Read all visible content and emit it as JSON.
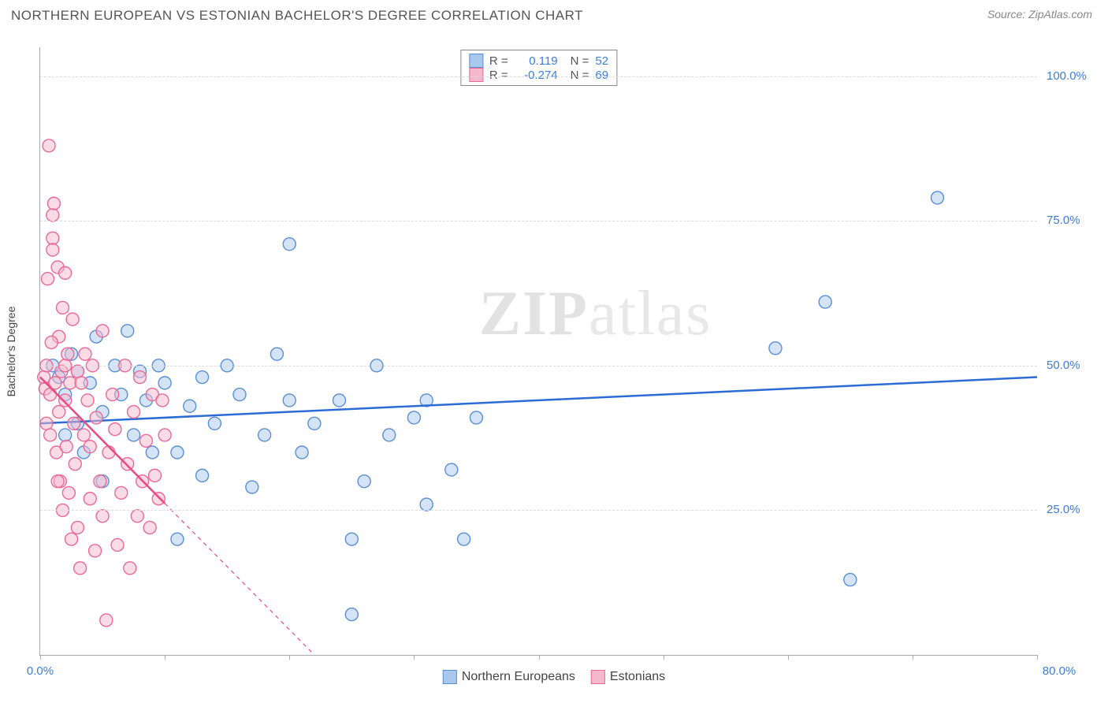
{
  "title": "NORTHERN EUROPEAN VS ESTONIAN BACHELOR'S DEGREE CORRELATION CHART",
  "source_prefix": "Source: ",
  "source_site": "ZipAtlas.com",
  "ylabel": "Bachelor's Degree",
  "watermark_a": "ZIP",
  "watermark_b": "atlas",
  "chart": {
    "type": "scatter",
    "xlim": [
      0,
      80
    ],
    "ylim": [
      0,
      105
    ],
    "xticks": [
      0,
      10,
      20,
      30,
      40,
      50,
      60,
      70,
      80
    ],
    "xtick_labels_shown": {
      "0": "0.0%",
      "80": "80.0%"
    },
    "yticks": [
      25,
      50,
      75,
      100
    ],
    "ytick_labels": {
      "25": "25.0%",
      "50": "50.0%",
      "75": "75.0%",
      "100": "100.0%"
    },
    "background_color": "#ffffff",
    "grid_color": "#dcdcdc",
    "marker_radius": 8,
    "marker_opacity": 0.5,
    "series": [
      {
        "name": "Northern Europeans",
        "fill": "#a9c8ee",
        "stroke": "#5a8fd6",
        "R": "0.119",
        "N": "52",
        "trend": {
          "x1": 0,
          "y1": 40,
          "x2": 80,
          "y2": 48,
          "color": "#2b6cd4",
          "width": 2.5,
          "dash_after_x": null
        },
        "points": [
          [
            1.0,
            50
          ],
          [
            1.5,
            48
          ],
          [
            2,
            45
          ],
          [
            2,
            38
          ],
          [
            2.5,
            52
          ],
          [
            3,
            49
          ],
          [
            3,
            40
          ],
          [
            3.5,
            35
          ],
          [
            4,
            47
          ],
          [
            4.5,
            55
          ],
          [
            5,
            42
          ],
          [
            5,
            30
          ],
          [
            6,
            50
          ],
          [
            6.5,
            45
          ],
          [
            7,
            56
          ],
          [
            7.5,
            38
          ],
          [
            8,
            49
          ],
          [
            8.5,
            44
          ],
          [
            9,
            35
          ],
          [
            9.5,
            50
          ],
          [
            10,
            47
          ],
          [
            11,
            20
          ],
          [
            11,
            35
          ],
          [
            12,
            43
          ],
          [
            13,
            48
          ],
          [
            13,
            31
          ],
          [
            14,
            40
          ],
          [
            15,
            50
          ],
          [
            16,
            45
          ],
          [
            17,
            29
          ],
          [
            18,
            38
          ],
          [
            19,
            52
          ],
          [
            20,
            71
          ],
          [
            20,
            44
          ],
          [
            21,
            35
          ],
          [
            22,
            40
          ],
          [
            24,
            44
          ],
          [
            25,
            7
          ],
          [
            25,
            20
          ],
          [
            26,
            30
          ],
          [
            27,
            50
          ],
          [
            28,
            38
          ],
          [
            30,
            41
          ],
          [
            31,
            44
          ],
          [
            31,
            26
          ],
          [
            33,
            32
          ],
          [
            34,
            20
          ],
          [
            35,
            41
          ],
          [
            59,
            53
          ],
          [
            63,
            61
          ],
          [
            65,
            13
          ],
          [
            72,
            79
          ]
        ]
      },
      {
        "name": "Estonians",
        "fill": "#f6b8cd",
        "stroke": "#e96a94",
        "R": "-0.274",
        "N": "69",
        "trend": {
          "x1": 0,
          "y1": 48,
          "x2": 22,
          "y2": 0,
          "color": "#e94b80",
          "width": 2.5,
          "dash_after_x": 10
        },
        "points": [
          [
            0.3,
            48
          ],
          [
            0.4,
            46
          ],
          [
            0.5,
            50
          ],
          [
            0.5,
            40
          ],
          [
            0.7,
            88
          ],
          [
            0.8,
            45
          ],
          [
            0.8,
            38
          ],
          [
            1.0,
            72
          ],
          [
            1.0,
            70
          ],
          [
            1.1,
            78
          ],
          [
            1.2,
            47
          ],
          [
            1.3,
            35
          ],
          [
            1.4,
            67
          ],
          [
            1.5,
            55
          ],
          [
            1.5,
            42
          ],
          [
            1.6,
            30
          ],
          [
            1.7,
            49
          ],
          [
            1.8,
            60
          ],
          [
            1.8,
            25
          ],
          [
            2.0,
            50
          ],
          [
            2.0,
            44
          ],
          [
            2.1,
            36
          ],
          [
            2.2,
            52
          ],
          [
            2.3,
            28
          ],
          [
            2.4,
            47
          ],
          [
            2.5,
            20
          ],
          [
            2.6,
            58
          ],
          [
            2.7,
            40
          ],
          [
            2.8,
            33
          ],
          [
            3.0,
            49
          ],
          [
            3.0,
            22
          ],
          [
            3.2,
            15
          ],
          [
            3.3,
            47
          ],
          [
            3.5,
            38
          ],
          [
            3.6,
            52
          ],
          [
            3.8,
            44
          ],
          [
            4.0,
            27
          ],
          [
            4.0,
            36
          ],
          [
            4.2,
            50
          ],
          [
            4.4,
            18
          ],
          [
            4.5,
            41
          ],
          [
            4.8,
            30
          ],
          [
            5.0,
            56
          ],
          [
            5.0,
            24
          ],
          [
            5.3,
            6
          ],
          [
            5.5,
            35
          ],
          [
            5.8,
            45
          ],
          [
            6.0,
            39
          ],
          [
            6.2,
            19
          ],
          [
            6.5,
            28
          ],
          [
            6.8,
            50
          ],
          [
            7.0,
            33
          ],
          [
            7.2,
            15
          ],
          [
            7.5,
            42
          ],
          [
            7.8,
            24
          ],
          [
            8.0,
            48
          ],
          [
            8.2,
            30
          ],
          [
            8.5,
            37
          ],
          [
            8.8,
            22
          ],
          [
            9.0,
            45
          ],
          [
            9.2,
            31
          ],
          [
            9.5,
            27
          ],
          [
            9.8,
            44
          ],
          [
            10.0,
            38
          ],
          [
            1.0,
            76
          ],
          [
            0.6,
            65
          ],
          [
            1.4,
            30
          ],
          [
            2.0,
            66
          ],
          [
            0.9,
            54
          ]
        ]
      }
    ]
  },
  "legend_bottom": [
    {
      "label": "Northern Europeans",
      "fill": "#a9c8ee",
      "stroke": "#5a8fd6"
    },
    {
      "label": "Estonians",
      "fill": "#f6b8cd",
      "stroke": "#e96a94"
    }
  ],
  "colors": {
    "title": "#555555",
    "source": "#888888",
    "axis_label": "#3b7dd8"
  }
}
